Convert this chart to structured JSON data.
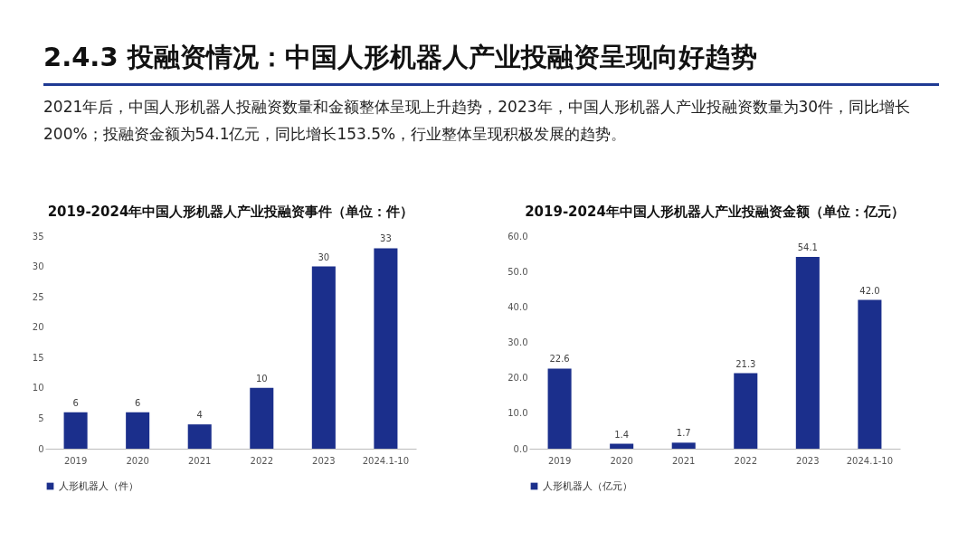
{
  "chart_data": [
    {
      "type": "other",
      "title": "2.4.3 投融资情况：中国人形机器人产业投融资呈现向好趋势",
      "subtitle": "2021年后，中国人形机器人投融资数量和金额整体呈现上升趋势，2023年，中国人形机器人产业投融资数量为30件，同比增长200%；投融资金额为54.1亿元，同比增长153.5%，行业整体呈现积极发展的趋势。"
    },
    {
      "type": "bar",
      "title": "2019-2024年中国人形机器人产业投融资事件（单位：件）",
      "categories": [
        "2019",
        "2020",
        "2021",
        "2022",
        "2023",
        "2024.1-10"
      ],
      "series": [
        {
          "name": "人形机器人（件）",
          "color": "#1b2f8c",
          "values": [
            6,
            6,
            4,
            10,
            30,
            33
          ]
        }
      ],
      "ylim": [
        0,
        35
      ],
      "yticks": [
        0,
        5,
        10,
        15,
        20,
        25,
        30,
        35
      ],
      "data_labels": true,
      "legend": "bottom"
    },
    {
      "type": "bar",
      "title": "2019-2024年中国人形机器人产业投融资金额（单位：亿元）",
      "categories": [
        "2019",
        "2020",
        "2021",
        "2022",
        "2023",
        "2024.1-10"
      ],
      "series": [
        {
          "name": "人形机器人（亿元）",
          "color": "#1b2f8c",
          "values": [
            22.6,
            1.4,
            1.7,
            21.3,
            54.1,
            42.0
          ],
          "value_labels": [
            "22.6",
            "1.4",
            "1.7",
            "21.3",
            "54.1",
            "42.0"
          ]
        }
      ],
      "ylim": [
        0,
        60
      ],
      "yticks": [
        {
          "value": 0,
          "label": "0.0"
        },
        {
          "value": 10,
          "label": "10.0"
        },
        {
          "value": 20,
          "label": "20.0"
        },
        {
          "value": 30,
          "label": "30.0"
        },
        {
          "value": 40,
          "label": "40.0"
        },
        {
          "value": 50,
          "label": "50.0"
        },
        {
          "value": 60,
          "label": "60.0"
        }
      ],
      "legend": "bottom"
    }
  ]
}
